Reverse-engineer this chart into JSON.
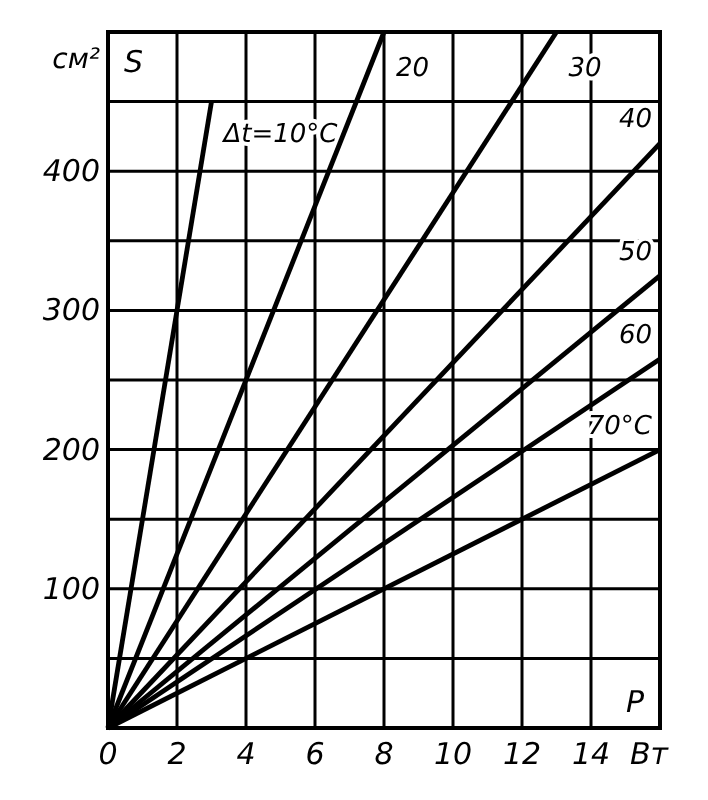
{
  "chart_data": {
    "type": "line",
    "xlabel": "P",
    "ylabel": "S",
    "annotations": [
      "см²",
      "Вт"
    ],
    "xlim": [
      0,
      16
    ],
    "ylim": [
      0,
      500
    ],
    "xticks": [
      0,
      2,
      4,
      6,
      8,
      10,
      12,
      14
    ],
    "yticks": [
      {
        "value": 50,
        "label": null
      },
      100,
      {
        "value": 150,
        "label": null
      },
      200,
      {
        "value": 250,
        "label": null
      },
      300,
      {
        "value": 350,
        "label": null
      },
      400,
      {
        "value": 450,
        "label": null
      }
    ],
    "grid": true,
    "marker": "none",
    "line_style": "solid",
    "series": [
      {
        "name": "Δt=10°C",
        "color": "#000000",
        "x": [
          0,
          3
        ],
        "values": [
          0,
          450
        ]
      },
      {
        "name": "20",
        "color": "#000000",
        "x": [
          0,
          8
        ],
        "values": [
          0,
          500
        ]
      },
      {
        "name": "30",
        "color": "#000000",
        "x": [
          0,
          13
        ],
        "values": [
          0,
          500
        ]
      },
      {
        "name": "40",
        "color": "#000000",
        "x": [
          0,
          16
        ],
        "values": [
          0,
          420
        ]
      },
      {
        "name": "50",
        "color": "#000000",
        "x": [
          0,
          16
        ],
        "values": [
          0,
          325
        ]
      },
      {
        "name": "60",
        "color": "#000000",
        "x": [
          0,
          16
        ],
        "values": [
          0,
          265
        ]
      },
      {
        "name": "70°C",
        "color": "#000000",
        "x": [
          0,
          16
        ],
        "values": [
          0,
          200
        ]
      }
    ]
  }
}
